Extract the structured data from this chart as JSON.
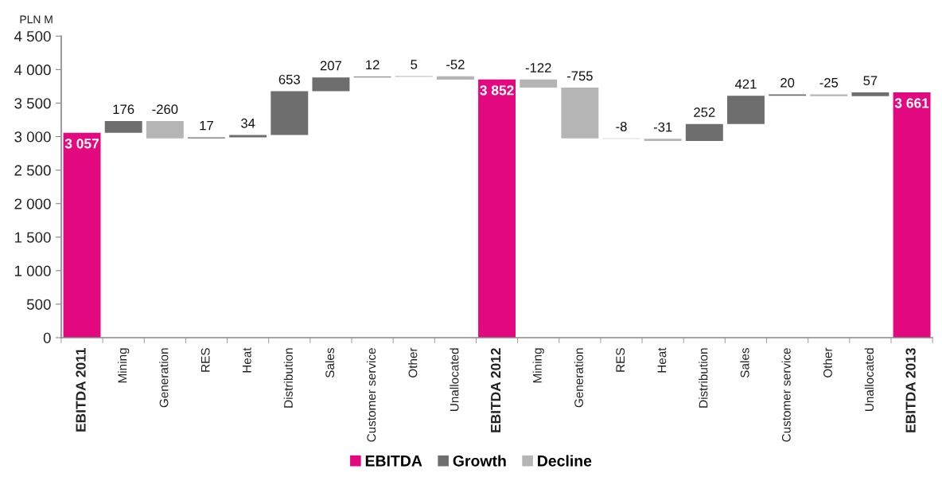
{
  "chart_data": {
    "type": "bar",
    "categories": [
      "EBITDA 2011",
      "Mining",
      "Generation",
      "RES",
      "Heat",
      "Distribution",
      "Sales",
      "Customer service",
      "Other",
      "Unallocated",
      "EBITDA 2012",
      "Mining",
      "Generation",
      "RES",
      "Heat",
      "Distribution",
      "Sales",
      "Customer service",
      "Other",
      "Unallocated",
      "EBITDA 2013"
    ],
    "ylabel": "PLN M",
    "ylim": [
      0,
      4500
    ],
    "yticks": [
      0,
      500,
      {
        "value": 1000,
        "label": "1 000"
      },
      {
        "value": 1500,
        "label": "1 500"
      },
      {
        "value": 2000,
        "label": "2 000"
      },
      {
        "value": 2500,
        "label": "2 500"
      },
      {
        "value": 3000,
        "label": "3 000"
      },
      {
        "value": 3500,
        "label": "3 500"
      },
      {
        "value": 4000,
        "label": "4 000"
      },
      {
        "value": 4500,
        "label": "4 500"
      }
    ],
    "grid": false,
    "legend": "bottom",
    "series": [
      {
        "name": "EBITDA",
        "color": "#e2087f",
        "values": [
          3057,
          null,
          null,
          null,
          null,
          null,
          null,
          null,
          null,
          null,
          3852,
          null,
          null,
          null,
          null,
          null,
          null,
          null,
          null,
          null,
          3661
        ],
        "value_labels": [
          "3 057",
          null,
          null,
          null,
          null,
          null,
          null,
          null,
          null,
          null,
          "3 852",
          null,
          null,
          null,
          null,
          null,
          null,
          null,
          null,
          null,
          "3 661"
        ]
      },
      {
        "name": "Growth",
        "color": "#6e6e6e",
        "values": [
          null,
          176,
          null,
          17,
          34,
          653,
          207,
          12,
          5,
          null,
          null,
          null,
          null,
          null,
          null,
          252,
          421,
          20,
          null,
          57,
          null
        ],
        "base": [
          null,
          3057,
          null,
          2973,
          2990,
          3024,
          3677,
          3884,
          3896,
          null,
          null,
          null,
          null,
          null,
          null,
          2936,
          3188,
          3609,
          null,
          3604,
          null
        ],
        "value_labels": [
          null,
          "176",
          null,
          "17",
          "34",
          "653",
          "207",
          "12",
          "5",
          null,
          null,
          null,
          null,
          null,
          null,
          "252",
          "421",
          "20",
          null,
          "57",
          null
        ]
      },
      {
        "name": "Decline",
        "color": "#b5b5b5",
        "values": [
          null,
          null,
          -260,
          null,
          null,
          null,
          null,
          null,
          null,
          -52,
          null,
          -122,
          -755,
          -8,
          -31,
          null,
          null,
          null,
          -25,
          null,
          null
        ],
        "base": [
          null,
          null,
          3233,
          null,
          null,
          null,
          null,
          null,
          null,
          3901,
          null,
          3852,
          3730,
          2975,
          2967,
          null,
          null,
          null,
          3629,
          null,
          null
        ],
        "value_labels": [
          null,
          null,
          "-260",
          null,
          null,
          null,
          null,
          null,
          null,
          "-52",
          null,
          "-122",
          "-755",
          "-8",
          "-31",
          null,
          null,
          null,
          "-25",
          null,
          null
        ]
      }
    ]
  }
}
